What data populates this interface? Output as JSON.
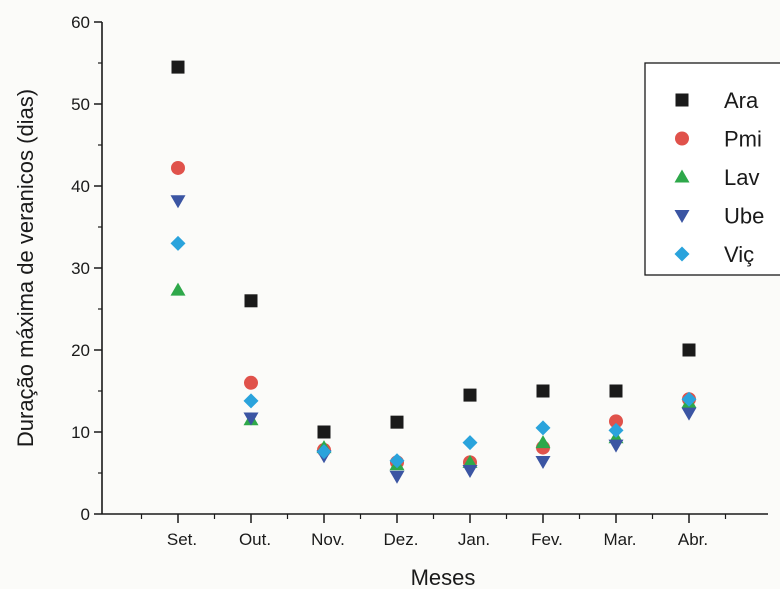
{
  "chart_data": {
    "type": "scatter",
    "xlabel": "Meses",
    "ylabel": "Duração máxima de veranicos (dias)",
    "categories": [
      "Set.",
      "Out.",
      "Nov.",
      "Dez.",
      "Jan.",
      "Fev.",
      "Mar.",
      "Abr."
    ],
    "ylim": [
      0,
      60
    ],
    "yticks": [
      0,
      10,
      20,
      30,
      40,
      50,
      60
    ],
    "grid": false,
    "legend_position": "top-right",
    "series": [
      {
        "name": "Ara",
        "marker": "square",
        "color": "#1a1a1a",
        "values": [
          54.5,
          26,
          10,
          11.2,
          14.5,
          15,
          15,
          20
        ]
      },
      {
        "name": "Pmi",
        "marker": "circle",
        "color": "#e0524b",
        "values": [
          42.2,
          16,
          7.8,
          6.3,
          6.3,
          8.1,
          11.3,
          14
        ]
      },
      {
        "name": "Lav",
        "marker": "triangle-up",
        "color": "#2ea84a",
        "values": [
          27.3,
          11.5,
          8.1,
          6.0,
          6.3,
          8.7,
          9.3,
          13.6
        ]
      },
      {
        "name": "Ube",
        "marker": "triangle-down",
        "color": "#3b55a3",
        "values": [
          38.2,
          11.7,
          7.1,
          4.6,
          5.3,
          6.4,
          8.4,
          12.3
        ]
      },
      {
        "name": "Viç",
        "marker": "diamond",
        "color": "#2aa3dc",
        "values": [
          33,
          13.8,
          7.6,
          6.5,
          8.7,
          10.5,
          10.2,
          14
        ]
      }
    ]
  }
}
